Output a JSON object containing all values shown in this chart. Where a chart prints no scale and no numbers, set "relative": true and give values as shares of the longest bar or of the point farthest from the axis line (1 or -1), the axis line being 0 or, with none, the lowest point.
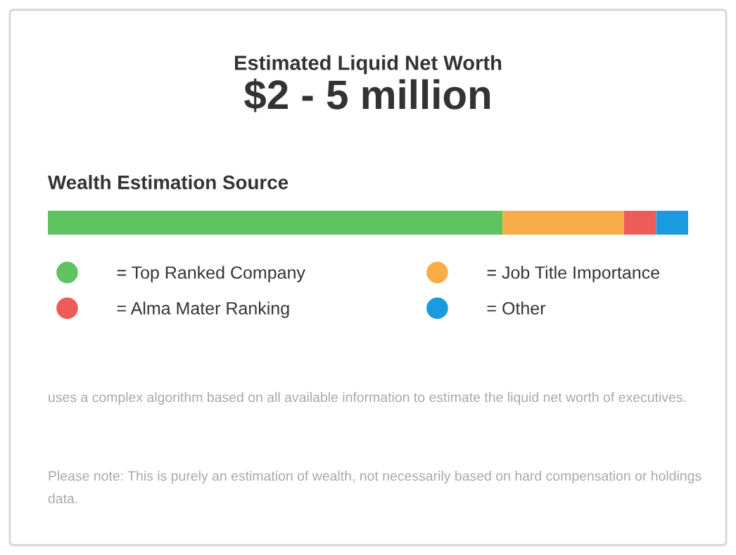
{
  "chart_data": {
    "type": "bar",
    "orientation": "horizontal",
    "stacked": true,
    "relative": true,
    "title": "Estimated Liquid Net Worth",
    "subtitle": "$2 - 5 million",
    "categories": [
      null
    ],
    "series": [
      {
        "name": "= Top Ranked Company",
        "color": "#5fc35f",
        "values": [
          0.71
        ]
      },
      {
        "name": "= Job Title Importance",
        "color": "#f9ad49",
        "values": [
          0.19
        ]
      },
      {
        "name": "= Alma Mater Ranking",
        "color": "#ee5b58",
        "values": [
          0.05
        ]
      },
      {
        "name": "= Other",
        "color": "#1a9be0",
        "values": [
          0.05
        ]
      }
    ],
    "legend": "bottom",
    "annotations": [
      "Wealth Estimation Source",
      "uses a complex algorithm based on all available information to estimate the liquid net worth of executives.",
      "Please note: This is purely an estimation of wealth, not necessarily based on hard compensation or holdings data."
    ]
  }
}
